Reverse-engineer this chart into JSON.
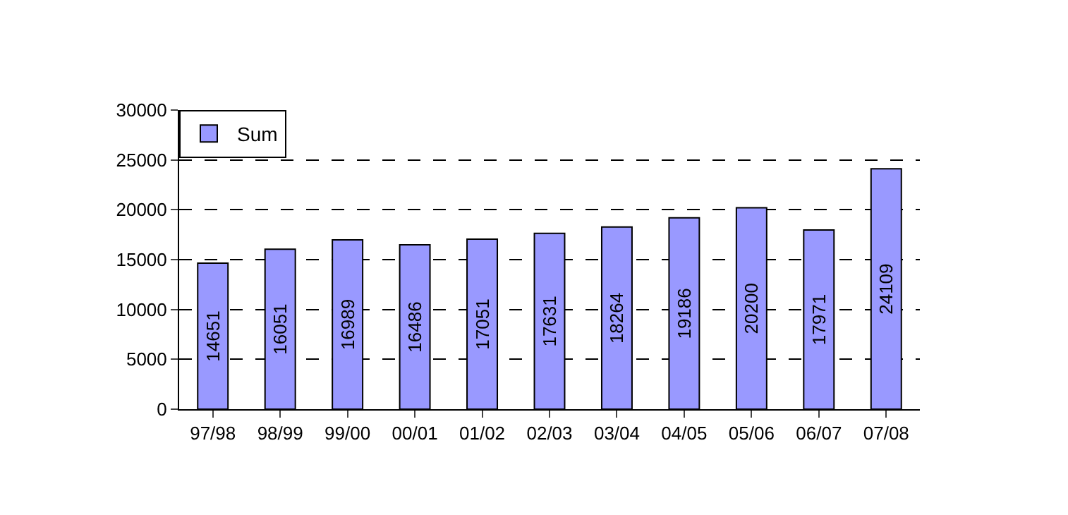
{
  "chart_data": {
    "type": "bar",
    "categories": [
      "97/98",
      "98/99",
      "99/00",
      "00/01",
      "01/02",
      "02/03",
      "03/04",
      "04/05",
      "05/06",
      "06/07",
      "07/08"
    ],
    "series": [
      {
        "name": "Sum",
        "color": "#9999ff",
        "values": [
          14651,
          16051,
          16989,
          16486,
          17051,
          17631,
          18264,
          19186,
          20200,
          17971,
          24109
        ]
      }
    ],
    "ylim": [
      0,
      30000
    ],
    "yticks": [
      0,
      5000,
      10000,
      15000,
      20000,
      25000,
      30000
    ],
    "grid": "y",
    "legend": "top left",
    "data_labels": true
  }
}
